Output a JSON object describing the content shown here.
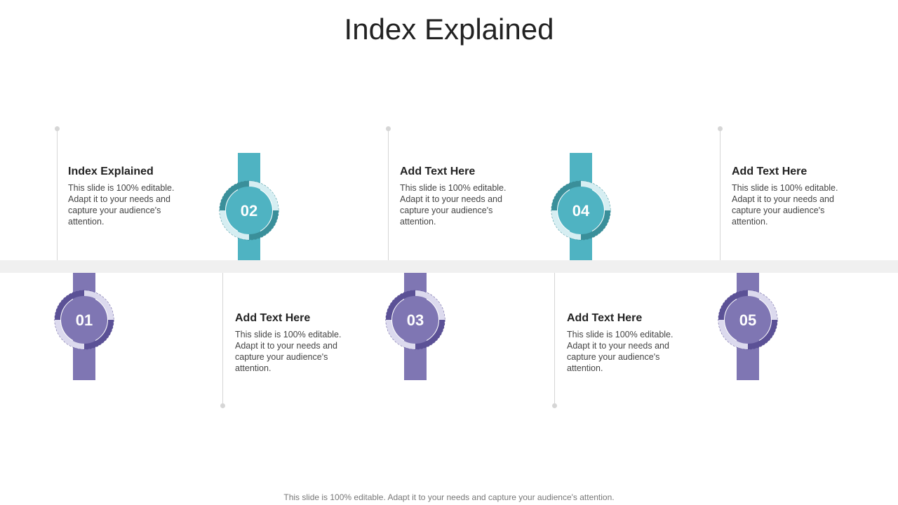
{
  "title": "Index Explained",
  "footer": "This slide is 100% editable. Adapt it to your needs and capture your audience's attention.",
  "colors": {
    "teal": "#4fb3c2",
    "teal_dark": "#3a8f9a",
    "teal_light": "#d6eef2",
    "purple": "#7f76b3",
    "purple_dark": "#5b5196",
    "purple_light": "#dcdaee",
    "band": "#f0f0f0"
  },
  "steps": [
    {
      "number": "01",
      "title": "Index Explained",
      "body": "This slide is 100% editable. Adapt it to your needs and capture your audience's attention."
    },
    {
      "number": "02",
      "title": "Add Text Here",
      "body": "This slide is 100% editable. Adapt it to your needs and capture your audience's attention."
    },
    {
      "number": "03",
      "title": "Add Text Here",
      "body": "This slide is 100% editable. Adapt it to your needs and capture your audience's attention."
    },
    {
      "number": "04",
      "title": "Add Text Here",
      "body": "This slide is 100% editable. Adapt it to your needs and capture your audience's attention."
    },
    {
      "number": "05",
      "title": "Add Text Here",
      "body": "This slide is 100% editable. Adapt it to your needs and capture your audience's attention."
    }
  ]
}
